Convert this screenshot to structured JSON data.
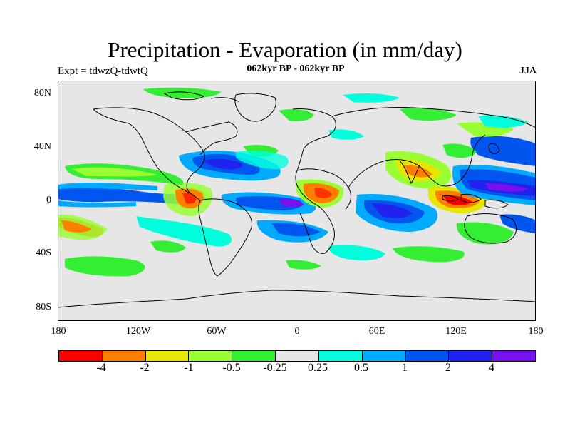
{
  "title": "Precipitation - Evaporation (in mm/day)",
  "subtitle_left": "Expt = tdwzQ-tdwtQ",
  "subtitle_center": "062kyr BP - 062kyr BP",
  "subtitle_right": "JJA",
  "y_ticks": [
    "80N",
    "40N",
    "0",
    "40S",
    "80S"
  ],
  "x_ticks": [
    "180",
    "120W",
    "60W",
    "0",
    "60E",
    "120E",
    "180"
  ],
  "colorbar": {
    "colors": [
      "#ff0000",
      "#ff8000",
      "#e6e600",
      "#99ff33",
      "#33ee33",
      "#e6e6e6",
      "#00ffdd",
      "#00aaff",
      "#0055ee",
      "#2222ee",
      "#7711ee"
    ],
    "labels": [
      "-4",
      "-2",
      "-1",
      "-0.5",
      "-0.25",
      "0.25",
      "0.5",
      "1",
      "2",
      "4"
    ]
  },
  "map_colors": {
    "background": "#e6e6e6",
    "red": "#ff0000",
    "orange": "#ff8000",
    "yellow": "#e6e600",
    "lightgreen": "#99ff33",
    "green": "#33ee33",
    "cyan": "#00ffdd",
    "lightblue": "#00aaff",
    "blue": "#0055ee",
    "darkblue": "#2222ee",
    "purple": "#7711ee"
  }
}
